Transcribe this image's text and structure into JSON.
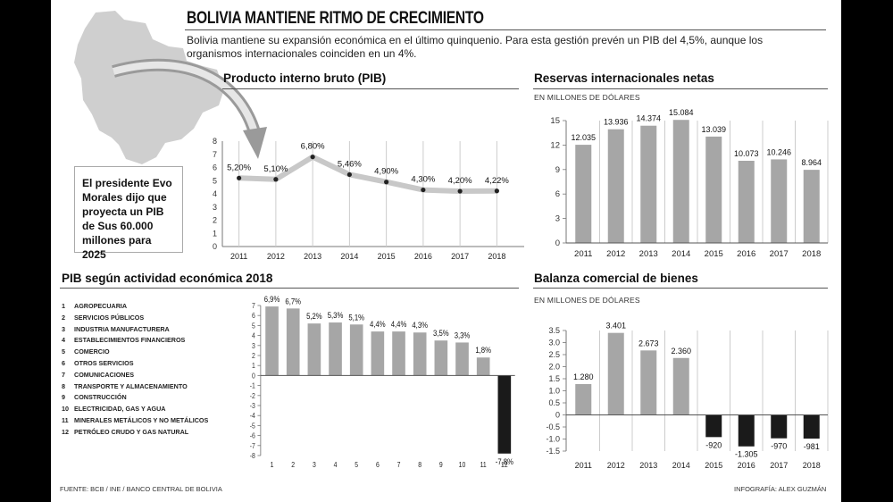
{
  "header": {
    "title": "BOLIVIA MANTIENE RITMO DE CRECIMIENTO",
    "subtitle": "Bolivia mantiene su expansión económica en el último quinquenio. Para esta gestión prevén un PIB del 4,5%, aunque los organismos internacionales coinciden en un 4%."
  },
  "callout": {
    "text": "El presidente Evo Morales dijo que proyecta un PIB de Sus 60.000 millones para 2025"
  },
  "footer": {
    "source": "FUENTE: BCB / INE / BANCO CENTRAL DE BOLIVIA",
    "credit": "INFOGRAFÍA: ALEX GUZMÁN"
  },
  "colors": {
    "bar": "#a6a6a6",
    "bar_negative": "#1a1a1a",
    "line": "#c8c8c8",
    "point": "#222222",
    "grid": "#cccccc"
  },
  "chart_data": [
    {
      "type": "line",
      "title": "Producto interno bruto (PIB)",
      "x": [
        "2011",
        "2012",
        "2013",
        "2014",
        "2015",
        "2016",
        "2017",
        "2018"
      ],
      "values": [
        5.2,
        5.1,
        6.8,
        5.46,
        4.9,
        4.3,
        4.2,
        4.22
      ],
      "labels": [
        "5,20%",
        "5,10%",
        "6,80%",
        "5,46%",
        "4,90%",
        "4,30%",
        "4,20%",
        "4,22%"
      ],
      "ylim": [
        0,
        8
      ],
      "yticks": [
        "0",
        "1",
        "2",
        "3",
        "4",
        "5",
        "6",
        "7",
        "8"
      ],
      "grid": "vertical"
    },
    {
      "type": "bar",
      "title": "Reservas internacionales netas",
      "unit": "EN MILLONES DE DÓLARES",
      "categories": [
        "2011",
        "2012",
        "2013",
        "2014",
        "2015",
        "2016",
        "2017",
        "2018"
      ],
      "values": [
        12.035,
        13.936,
        14.374,
        15.084,
        13.039,
        10.073,
        10.246,
        8.964
      ],
      "labels": [
        "12.035",
        "13.936",
        "14.374",
        "15.084",
        "13.039",
        "10.073",
        "10.246",
        "8.964"
      ],
      "ylim": [
        0,
        15
      ],
      "yticks": [
        "0",
        "3",
        "6",
        "9",
        "12",
        "15"
      ],
      "grid": "vertical"
    },
    {
      "type": "bar",
      "title": "PIB según actividad económica 2018",
      "categories": [
        "1",
        "2",
        "3",
        "4",
        "5",
        "6",
        "7",
        "8",
        "9",
        "10",
        "11",
        "12"
      ],
      "category_names": [
        "AGROPECUARIA",
        "SERVICIOS PÚBLICOS",
        "INDUSTRIA MANUFACTURERA",
        "ESTABLECIMIENTOS FINANCIEROS",
        "COMERCIO",
        "OTROS SERVICIOS",
        "COMUNICACIONES",
        "TRANSPORTE Y ALMACENAMIENTO",
        "CONSTRUCCIÓN",
        "ELECTRICIDAD, GAS Y AGUA",
        "MINERALES METÁLICOS Y NO METÁLICOS",
        "PETRÓLEO CRUDO Y GAS NATURAL"
      ],
      "values": [
        6.9,
        6.7,
        5.2,
        5.3,
        5.1,
        4.4,
        4.4,
        4.3,
        3.5,
        3.3,
        1.8,
        -7.8
      ],
      "labels": [
        "6,9%",
        "6,7%",
        "5,2%",
        "5,3%",
        "5,1%",
        "4,4%",
        "4,4%",
        "4,3%",
        "3,5%",
        "3,3%",
        "1,8%",
        "-7,8%"
      ],
      "ylim": [
        -8,
        7
      ],
      "yticks": [
        "7",
        "6",
        "5",
        "4",
        "3",
        "2",
        "1",
        "0",
        "-1",
        "-2",
        "-3",
        "-4",
        "-5",
        "-6",
        "-7",
        "-8"
      ]
    },
    {
      "type": "bar",
      "title": "Balanza comercial de bienes",
      "unit": "EN MILLONES DE DÓLARES",
      "categories": [
        "2011",
        "2012",
        "2013",
        "2014",
        "2015",
        "2016",
        "2017",
        "2018"
      ],
      "values": [
        1.28,
        3.401,
        2.673,
        2.36,
        -0.92,
        -1.305,
        -0.97,
        -0.981
      ],
      "labels": [
        "1.280",
        "3.401",
        "2.673",
        "2.360",
        "-920",
        "-1.305",
        "-970",
        "-981"
      ],
      "ylim": [
        -1.5,
        3.5
      ],
      "yticks": [
        "3.5",
        "3.0",
        "2.5",
        "2.0",
        "1.5",
        "1.0",
        "0.5",
        "0",
        "-0.5",
        "-1.0",
        "-1.5"
      ],
      "grid": "vertical"
    }
  ]
}
